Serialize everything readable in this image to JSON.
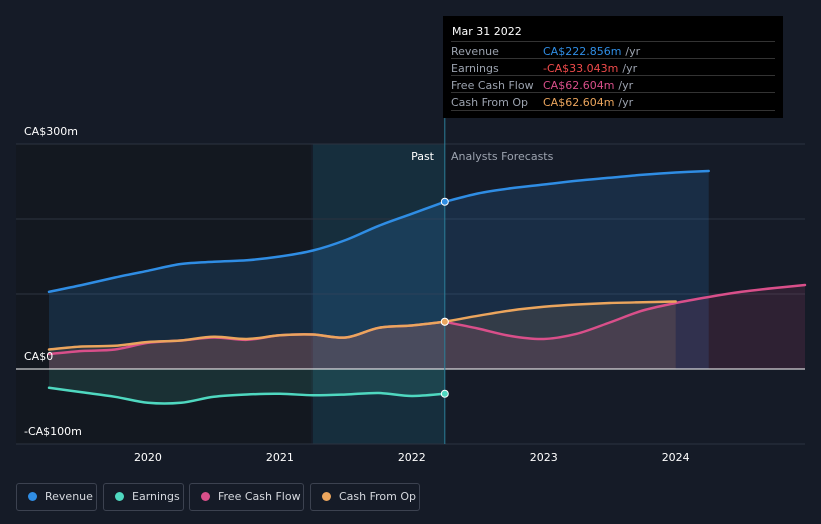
{
  "tooltip": {
    "date": "Mar 31 2022",
    "rows": [
      {
        "label": "Revenue",
        "value": "CA$222.856m",
        "unit": "/yr",
        "color": "#2f8de4"
      },
      {
        "label": "Earnings",
        "value": "-CA$33.043m",
        "unit": "/yr",
        "color": "#f04b4b"
      },
      {
        "label": "Free Cash Flow",
        "value": "CA$62.604m",
        "unit": "/yr",
        "color": "#d94f8a"
      },
      {
        "label": "Cash From Op",
        "value": "CA$62.604m",
        "unit": "/yr",
        "color": "#eba55d"
      }
    ]
  },
  "labels": {
    "past": "Past",
    "forecast": "Analysts Forecasts"
  },
  "chart_data": {
    "type": "line",
    "title": "",
    "xlabel": "",
    "ylabel": "",
    "xlim": [
      2019.0,
      2024.98
    ],
    "ylim": [
      -100,
      300
    ],
    "x_ticks": [
      2020,
      2021,
      2022,
      2023,
      2024
    ],
    "y_ticks": [
      {
        "value": 300,
        "label": "CA$300m"
      },
      {
        "value": 0,
        "label": "CA$0"
      },
      {
        "value": -100,
        "label": "-CA$100m"
      }
    ],
    "highlight_x": 2022.25,
    "shaded_range": [
      2021.25,
      2022.25
    ],
    "series": [
      {
        "name": "Revenue",
        "color": "#2f8de4",
        "fill": true,
        "past": [
          [
            2019.25,
            103
          ],
          [
            2019.5,
            112
          ],
          [
            2019.75,
            122
          ],
          [
            2020.0,
            131
          ],
          [
            2020.25,
            140
          ],
          [
            2020.5,
            143
          ],
          [
            2020.75,
            145
          ],
          [
            2021.0,
            150
          ],
          [
            2021.25,
            158
          ],
          [
            2021.5,
            172
          ],
          [
            2021.75,
            191
          ],
          [
            2022.0,
            207
          ],
          [
            2022.25,
            223
          ]
        ],
        "forecast": [
          [
            2022.25,
            223
          ],
          [
            2022.5,
            234
          ],
          [
            2022.75,
            241
          ],
          [
            2023.0,
            246
          ],
          [
            2023.25,
            251
          ],
          [
            2023.5,
            255
          ],
          [
            2023.75,
            259
          ],
          [
            2024.0,
            262
          ],
          [
            2024.25,
            264
          ]
        ]
      },
      {
        "name": "Earnings",
        "color": "#4fd8c0",
        "fill": true,
        "past": [
          [
            2019.25,
            -25
          ],
          [
            2019.5,
            -31
          ],
          [
            2019.75,
            -37
          ],
          [
            2020.0,
            -45
          ],
          [
            2020.25,
            -45
          ],
          [
            2020.5,
            -37
          ],
          [
            2020.75,
            -34
          ],
          [
            2021.0,
            -33
          ],
          [
            2021.25,
            -35
          ],
          [
            2021.5,
            -34
          ],
          [
            2021.75,
            -32
          ],
          [
            2022.0,
            -36
          ],
          [
            2022.25,
            -33
          ]
        ],
        "forecast": []
      },
      {
        "name": "Free Cash Flow",
        "color": "#d94f8a",
        "fill": true,
        "past": [
          [
            2019.25,
            20
          ],
          [
            2019.5,
            24
          ],
          [
            2019.75,
            26
          ],
          [
            2020.0,
            35
          ],
          [
            2020.25,
            38
          ],
          [
            2020.5,
            42
          ],
          [
            2020.75,
            39
          ],
          [
            2021.0,
            45
          ],
          [
            2021.25,
            46
          ],
          [
            2021.5,
            42
          ],
          [
            2021.75,
            55
          ],
          [
            2022.0,
            58
          ],
          [
            2022.25,
            63
          ]
        ],
        "forecast": [
          [
            2022.25,
            63
          ],
          [
            2022.5,
            54
          ],
          [
            2022.75,
            44
          ],
          [
            2023.0,
            40
          ],
          [
            2023.25,
            47
          ],
          [
            2023.5,
            62
          ],
          [
            2023.75,
            78
          ],
          [
            2024.0,
            88
          ],
          [
            2024.25,
            96
          ],
          [
            2024.5,
            103
          ],
          [
            2024.75,
            108
          ],
          [
            2024.98,
            112
          ]
        ]
      },
      {
        "name": "Cash From Op",
        "color": "#eba55d",
        "fill": true,
        "past": [
          [
            2019.25,
            26
          ],
          [
            2019.5,
            30
          ],
          [
            2019.75,
            31
          ],
          [
            2020.0,
            36
          ],
          [
            2020.25,
            38
          ],
          [
            2020.5,
            43
          ],
          [
            2020.75,
            40
          ],
          [
            2021.0,
            45
          ],
          [
            2021.25,
            46
          ],
          [
            2021.5,
            42
          ],
          [
            2021.75,
            55
          ],
          [
            2022.0,
            58
          ],
          [
            2022.25,
            63
          ]
        ],
        "forecast": [
          [
            2022.25,
            63
          ],
          [
            2022.5,
            71
          ],
          [
            2022.75,
            78
          ],
          [
            2023.0,
            83
          ],
          [
            2023.25,
            86
          ],
          [
            2023.5,
            88
          ],
          [
            2023.75,
            89
          ],
          [
            2024.0,
            90
          ]
        ]
      }
    ]
  },
  "legend": [
    {
      "label": "Revenue",
      "color": "#2f8de4"
    },
    {
      "label": "Earnings",
      "color": "#4fd8c0"
    },
    {
      "label": "Free Cash Flow",
      "color": "#d94f8a"
    },
    {
      "label": "Cash From Op",
      "color": "#eba55d"
    }
  ]
}
